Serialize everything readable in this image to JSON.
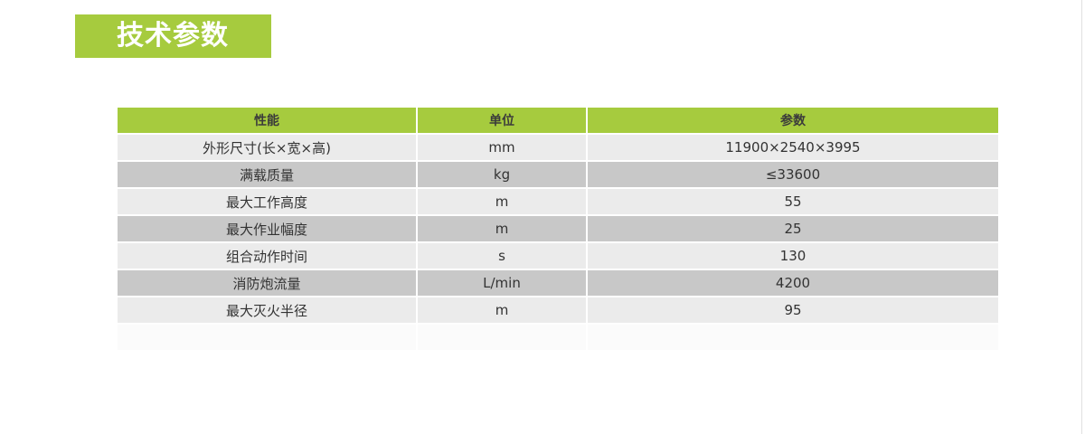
{
  "title": "技术参数",
  "colors": {
    "accent": "#a6cb3e",
    "row_light": "#ebebeb",
    "row_dark": "#c8c8c8"
  },
  "table": {
    "headers": [
      "性能",
      "单位",
      "参数"
    ],
    "rows": [
      [
        "外形尺寸(长×宽×高)",
        "mm",
        "11900×2540×3995"
      ],
      [
        "满载质量",
        "kg",
        "≤33600"
      ],
      [
        "最大工作高度",
        "m",
        "55"
      ],
      [
        "最大作业幅度",
        "m",
        "25"
      ],
      [
        "组合动作时间",
        "s",
        "130"
      ],
      [
        "消防炮流量",
        "L/min",
        "4200"
      ],
      [
        "最大灭火半径",
        "m",
        "95"
      ]
    ]
  }
}
